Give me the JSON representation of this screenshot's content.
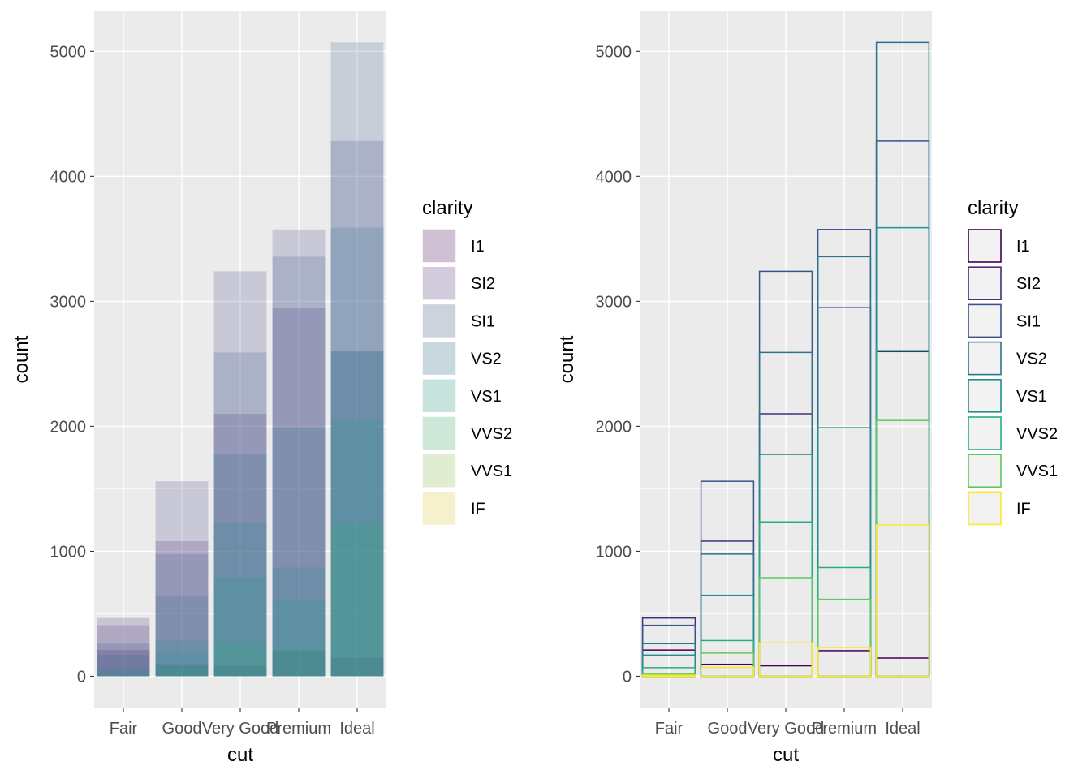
{
  "chart_data": [
    {
      "type": "bar",
      "variant": "overlapping-transparent-fill",
      "xlabel": "cut",
      "ylabel": "count",
      "ylim": [
        -250,
        5320
      ],
      "yticks": [
        0,
        1000,
        2000,
        3000,
        4000,
        5000
      ],
      "grid": true,
      "legend_position": "right",
      "legend_title": "clarity",
      "fill_alpha": 0.2,
      "categories": [
        "Fair",
        "Good",
        "Very Good",
        "Premium",
        "Ideal"
      ],
      "series": [
        {
          "name": "I1",
          "values": [
            210,
            96,
            84,
            205,
            146
          ],
          "color": "#440154"
        },
        {
          "name": "SI2",
          "values": [
            466,
            1081,
            2100,
            2949,
            2598
          ],
          "color": "#482173"
        },
        {
          "name": "SI1",
          "values": [
            408,
            1560,
            3240,
            3575,
            4282
          ],
          "color": "#433E85"
        },
        {
          "name": "VS2",
          "values": [
            261,
            978,
            2591,
            3357,
            5071
          ],
          "color": "#38598C"
        },
        {
          "name": "VS1",
          "values": [
            170,
            648,
            1775,
            1989,
            3589
          ],
          "color": "#2D708E"
        },
        {
          "name": "VVS2",
          "values": [
            69,
            286,
            1235,
            870,
            2606
          ],
          "color": "#25858E"
        },
        {
          "name": "VVS1",
          "values": [
            17,
            186,
            789,
            616,
            2047
          ],
          "color": "#1E9B8A"
        },
        {
          "name": "IF",
          "values": [
            9,
            71,
            268,
            230,
            1212
          ],
          "color": "#2BB07F"
        }
      ]
    },
    {
      "type": "bar",
      "variant": "overlapping-outline-only",
      "xlabel": "cut",
      "ylabel": "count",
      "ylim": [
        -250,
        5320
      ],
      "yticks": [
        0,
        1000,
        2000,
        3000,
        4000,
        5000
      ],
      "grid": true,
      "legend_position": "right",
      "legend_title": "clarity",
      "categories": [
        "Fair",
        "Good",
        "Very Good",
        "Premium",
        "Ideal"
      ],
      "series": [
        {
          "name": "I1",
          "values": [
            210,
            96,
            84,
            205,
            146
          ],
          "color": "#440154"
        },
        {
          "name": "SI2",
          "values": [
            466,
            1081,
            2100,
            2949,
            2598
          ],
          "color": "#472D7B"
        },
        {
          "name": "SI1",
          "values": [
            408,
            1560,
            3240,
            3575,
            4282
          ],
          "color": "#3B528B"
        },
        {
          "name": "VS2",
          "values": [
            261,
            978,
            2591,
            3357,
            5071
          ],
          "color": "#2C728E"
        },
        {
          "name": "VS1",
          "values": [
            170,
            648,
            1775,
            1989,
            3589
          ],
          "color": "#21908C"
        },
        {
          "name": "VVS2",
          "values": [
            69,
            286,
            1235,
            870,
            2606
          ],
          "color": "#27AD81"
        },
        {
          "name": "VVS1",
          "values": [
            17,
            186,
            789,
            616,
            2047
          ],
          "color": "#5DC863"
        },
        {
          "name": "IF",
          "values": [
            9,
            71,
            268,
            230,
            1212
          ],
          "color": "#FDE725"
        }
      ]
    }
  ],
  "legend_swatch_fills_left": [
    "#d0c0d4",
    "#d1cbdc",
    "#ccd3dc",
    "#c9d8de",
    "#c6e3de",
    "#cde8d9",
    "#e1ecd3",
    "#f6f0cd"
  ],
  "colors": {
    "panel_bg": "#EBEBEB",
    "grid": "#FFFFFF",
    "tick_text": "#4D4D4D",
    "axis_title": "#000000",
    "legend_key_bg": "#F2F2F2"
  }
}
